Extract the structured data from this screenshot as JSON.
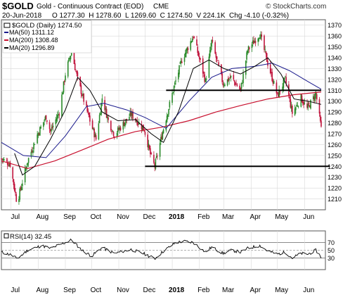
{
  "header": {
    "symbol": "$GOLD",
    "name": "Gold - Continuous Contract (EOD)",
    "exchange": "CME",
    "date": "20-Jun-2018",
    "ohlc_line": "O 1277.30  H 1278.60  L 1269.60  C 1274.50  V 224.1K  Chg -4.10 (-0.32%)",
    "watermark": "© StockCharts.com"
  },
  "legend": {
    "main": "$GOLD (Daily) 1274.50",
    "ma50": "MA(50) 1311.12",
    "ma200": "MA(200) 1308.48",
    "ma20": "MA(20) 1296.89"
  },
  "rsi_label": "RSI(14) 32.45",
  "colors": {
    "up_candle": "#2a8a2a",
    "down_candle": "#c0143c",
    "ma50": "#1a1a8c",
    "ma200": "#c8102e",
    "ma20": "#000000",
    "grid": "#d8d8d8",
    "axis": "#555555"
  },
  "chart_data": [
    {
      "type": "candlestick",
      "title": "$GOLD (Daily) 1274.50",
      "ylim": [
        1200,
        1375
      ],
      "y_ticks": [
        1210,
        1220,
        1230,
        1240,
        1250,
        1260,
        1270,
        1280,
        1290,
        1300,
        1310,
        1320,
        1330,
        1340,
        1350,
        1360,
        1370
      ],
      "x_ticks": [
        "Jul",
        "Aug",
        "Sep",
        "Oct",
        "Nov",
        "Dec",
        "2018",
        "Feb",
        "Mar",
        "Apr",
        "May",
        "Jun"
      ],
      "x_range": [
        "2017-06-20",
        "2018-06-20"
      ],
      "price_path": [
        [
          "2017-06-20",
          1247
        ],
        [
          "2017-06-30",
          1242
        ],
        [
          "2017-07-07",
          1210
        ],
        [
          "2017-07-10",
          1213
        ],
        [
          "2017-07-20",
          1245
        ],
        [
          "2017-07-31",
          1269
        ],
        [
          "2017-08-10",
          1286
        ],
        [
          "2017-08-15",
          1272
        ],
        [
          "2017-08-25",
          1290
        ],
        [
          "2017-09-01",
          1325
        ],
        [
          "2017-09-08",
          1346
        ],
        [
          "2017-09-15",
          1320
        ],
        [
          "2017-09-29",
          1282
        ],
        [
          "2017-10-06",
          1265
        ],
        [
          "2017-10-13",
          1303
        ],
        [
          "2017-10-20",
          1282
        ],
        [
          "2017-10-27",
          1269
        ],
        [
          "2017-11-15",
          1288
        ],
        [
          "2017-11-30",
          1274
        ],
        [
          "2017-12-08",
          1248
        ],
        [
          "2017-12-12",
          1240
        ],
        [
          "2017-12-22",
          1275
        ],
        [
          "2018-01-03",
          1313
        ],
        [
          "2018-01-12",
          1338
        ],
        [
          "2018-01-25",
          1360
        ],
        [
          "2018-02-08",
          1318
        ],
        [
          "2018-02-15",
          1355
        ],
        [
          "2018-02-28",
          1316
        ],
        [
          "2018-03-09",
          1322
        ],
        [
          "2018-03-20",
          1310
        ],
        [
          "2018-03-28",
          1347
        ],
        [
          "2018-04-11",
          1362
        ],
        [
          "2018-04-20",
          1335
        ],
        [
          "2018-05-01",
          1305
        ],
        [
          "2018-05-10",
          1320
        ],
        [
          "2018-05-18",
          1289
        ],
        [
          "2018-05-28",
          1303
        ],
        [
          "2018-06-04",
          1293
        ],
        [
          "2018-06-14",
          1307
        ],
        [
          "2018-06-20",
          1274.5
        ]
      ],
      "ma20_path": [
        [
          "2017-07-05",
          1252
        ],
        [
          "2017-07-14",
          1232
        ],
        [
          "2017-07-28",
          1240
        ],
        [
          "2017-08-15",
          1265
        ],
        [
          "2017-09-01",
          1292
        ],
        [
          "2017-09-15",
          1322
        ],
        [
          "2017-09-29",
          1310
        ],
        [
          "2017-10-13",
          1290
        ],
        [
          "2017-10-31",
          1282
        ],
        [
          "2017-11-20",
          1283
        ],
        [
          "2017-12-08",
          1270
        ],
        [
          "2017-12-22",
          1262
        ],
        [
          "2018-01-08",
          1290
        ],
        [
          "2018-01-25",
          1330
        ],
        [
          "2018-02-12",
          1338
        ],
        [
          "2018-03-01",
          1330
        ],
        [
          "2018-03-20",
          1325
        ],
        [
          "2018-04-05",
          1332
        ],
        [
          "2018-04-20",
          1340
        ],
        [
          "2018-05-05",
          1325
        ],
        [
          "2018-05-20",
          1302
        ],
        [
          "2018-06-05",
          1300
        ],
        [
          "2018-06-20",
          1297
        ]
      ],
      "ma50_path": [
        [
          "2017-06-20",
          1262
        ],
        [
          "2017-07-15",
          1250
        ],
        [
          "2017-08-10",
          1248
        ],
        [
          "2017-09-01",
          1268
        ],
        [
          "2017-09-25",
          1295
        ],
        [
          "2017-10-15",
          1298
        ],
        [
          "2017-11-10",
          1292
        ],
        [
          "2017-12-01",
          1285
        ],
        [
          "2017-12-25",
          1275
        ],
        [
          "2018-01-20",
          1300
        ],
        [
          "2018-02-15",
          1322
        ],
        [
          "2018-03-10",
          1330
        ],
        [
          "2018-04-05",
          1332
        ],
        [
          "2018-04-25",
          1335
        ],
        [
          "2018-05-15",
          1328
        ],
        [
          "2018-06-05",
          1318
        ],
        [
          "2018-06-20",
          1311
        ]
      ],
      "ma200_path": [
        [
          "2017-06-20",
          1245
        ],
        [
          "2017-07-20",
          1238
        ],
        [
          "2017-08-20",
          1245
        ],
        [
          "2017-09-20",
          1255
        ],
        [
          "2017-10-20",
          1265
        ],
        [
          "2017-11-20",
          1272
        ],
        [
          "2017-12-20",
          1276
        ],
        [
          "2018-01-20",
          1282
        ],
        [
          "2018-02-20",
          1290
        ],
        [
          "2018-03-20",
          1296
        ],
        [
          "2018-04-20",
          1302
        ],
        [
          "2018-05-20",
          1306
        ],
        [
          "2018-06-20",
          1308.5
        ]
      ],
      "horizontal_lines": [
        {
          "y": 1310,
          "from": "2017-12-25",
          "to": "2018-06-20"
        },
        {
          "y": 1240,
          "from": "2017-12-01",
          "to": "2018-06-30"
        }
      ]
    },
    {
      "type": "line",
      "title": "RSI(14) 32.45",
      "ylim": [
        0,
        100
      ],
      "y_ticks": [
        30,
        50,
        70
      ],
      "reference_lines": [
        30,
        50,
        70
      ],
      "x_ticks": [
        "Jul",
        "Aug",
        "Sep",
        "Oct",
        "Nov",
        "Dec",
        "2018",
        "Feb",
        "Mar",
        "Apr",
        "May",
        "Jun"
      ],
      "rsi_path": [
        [
          "2017-06-20",
          45
        ],
        [
          "2017-07-01",
          38
        ],
        [
          "2017-07-08",
          28
        ],
        [
          "2017-07-20",
          50
        ],
        [
          "2017-08-05",
          62
        ],
        [
          "2017-08-15",
          55
        ],
        [
          "2017-09-01",
          70
        ],
        [
          "2017-09-08",
          77
        ],
        [
          "2017-09-20",
          50
        ],
        [
          "2017-10-01",
          35
        ],
        [
          "2017-10-13",
          57
        ],
        [
          "2017-10-27",
          42
        ],
        [
          "2017-11-15",
          52
        ],
        [
          "2017-12-01",
          40
        ],
        [
          "2017-12-12",
          28
        ],
        [
          "2017-12-22",
          48
        ],
        [
          "2018-01-05",
          70
        ],
        [
          "2018-01-15",
          73
        ],
        [
          "2018-01-25",
          70
        ],
        [
          "2018-02-08",
          45
        ],
        [
          "2018-02-15",
          58
        ],
        [
          "2018-02-28",
          42
        ],
        [
          "2018-03-10",
          50
        ],
        [
          "2018-03-20",
          45
        ],
        [
          "2018-03-28",
          55
        ],
        [
          "2018-04-11",
          62
        ],
        [
          "2018-04-20",
          48
        ],
        [
          "2018-05-01",
          40
        ],
        [
          "2018-05-10",
          45
        ],
        [
          "2018-05-18",
          30
        ],
        [
          "2018-05-28",
          42
        ],
        [
          "2018-06-05",
          40
        ],
        [
          "2018-06-14",
          50
        ],
        [
          "2018-06-20",
          32.45
        ]
      ]
    }
  ]
}
